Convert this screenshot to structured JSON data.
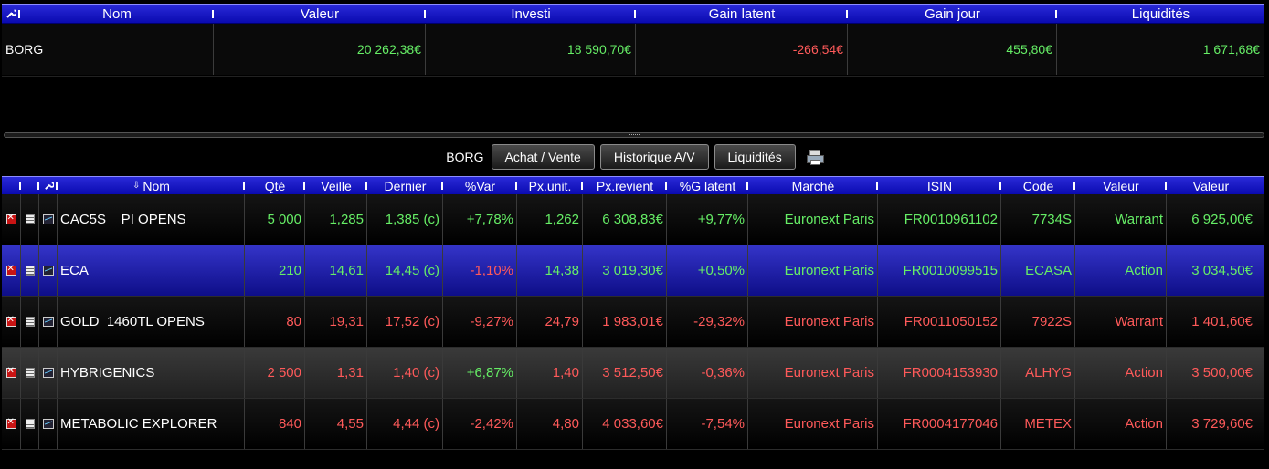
{
  "summary": {
    "columns": [
      "Nom",
      "Valeur",
      "Investi",
      "Gain latent",
      "Gain jour",
      "Liquidités"
    ],
    "row": {
      "nom": "BORG",
      "valeur": "20 262,38€",
      "investi": "18 590,70€",
      "gain_latent": "-266,54€",
      "gain_jour": "455,80€",
      "liquidites": "1 671,68€"
    }
  },
  "toolbar": {
    "account": "BORG",
    "buy_sell_label": "Achat / Vente",
    "history_label": "Historique A/V",
    "cash_label": "Liquidités"
  },
  "positions": {
    "columns": [
      "Nom",
      "Qté",
      "Veille",
      "Dernier",
      "%Var",
      "Px.unit.",
      "Px.revient",
      "%G latent",
      "Marché",
      "ISIN",
      "Code",
      "Valeur",
      "Valeur"
    ],
    "rows": [
      {
        "nom": "CAC5S    PI OPENS",
        "qte": "5 000",
        "veille": "1,285",
        "dernier": "1,385 (c)",
        "var": "+7,78%",
        "pxunit": "1,262",
        "pxrevient": "6 308,83€",
        "glatent": "+9,77%",
        "marche": "Euronext Paris",
        "isin": "FR0010961102",
        "code": "7734S",
        "type": "Warrant",
        "valeur": "6 925,00€"
      },
      {
        "nom": "ECA",
        "qte": "210",
        "veille": "14,61",
        "dernier": "14,45 (c)",
        "var": "-1,10%",
        "pxunit": "14,38",
        "pxrevient": "3 019,30€",
        "glatent": "+0,50%",
        "marche": "Euronext Paris",
        "isin": "FR0010099515",
        "code": "ECASA",
        "type": "Action",
        "valeur": "3 034,50€"
      },
      {
        "nom": "GOLD  1460TL OPENS",
        "qte": "80",
        "veille": "19,31",
        "dernier": "17,52 (c)",
        "var": "-9,27%",
        "pxunit": "24,79",
        "pxrevient": "1 983,01€",
        "glatent": "-29,32%",
        "marche": "Euronext Paris",
        "isin": "FR0011050152",
        "code": "7922S",
        "type": "Warrant",
        "valeur": "1 401,60€"
      },
      {
        "nom": "HYBRIGENICS",
        "qte": "2 500",
        "veille": "1,31",
        "dernier": "1,40 (c)",
        "var": "+6,87%",
        "pxunit": "1,40",
        "pxrevient": "3 512,50€",
        "glatent": "-0,36%",
        "marche": "Euronext Paris",
        "isin": "FR0004153930",
        "code": "ALHYG",
        "type": "Action",
        "valeur": "3 500,00€"
      },
      {
        "nom": "METABOLIC EXPLORER",
        "qte": "840",
        "veille": "4,55",
        "dernier": "4,44 (c)",
        "var": "-2,42%",
        "pxunit": "4,80",
        "pxrevient": "4 033,60€",
        "glatent": "-7,54%",
        "marche": "Euronext Paris",
        "isin": "FR0004177046",
        "code": "METEX",
        "type": "Action",
        "valeur": "3 729,60€"
      }
    ]
  },
  "colors": {
    "header_blue": "#1a1ac8",
    "selected_row": "#2424b0",
    "gain": "#66ee66",
    "loss": "#ff5a5a"
  }
}
